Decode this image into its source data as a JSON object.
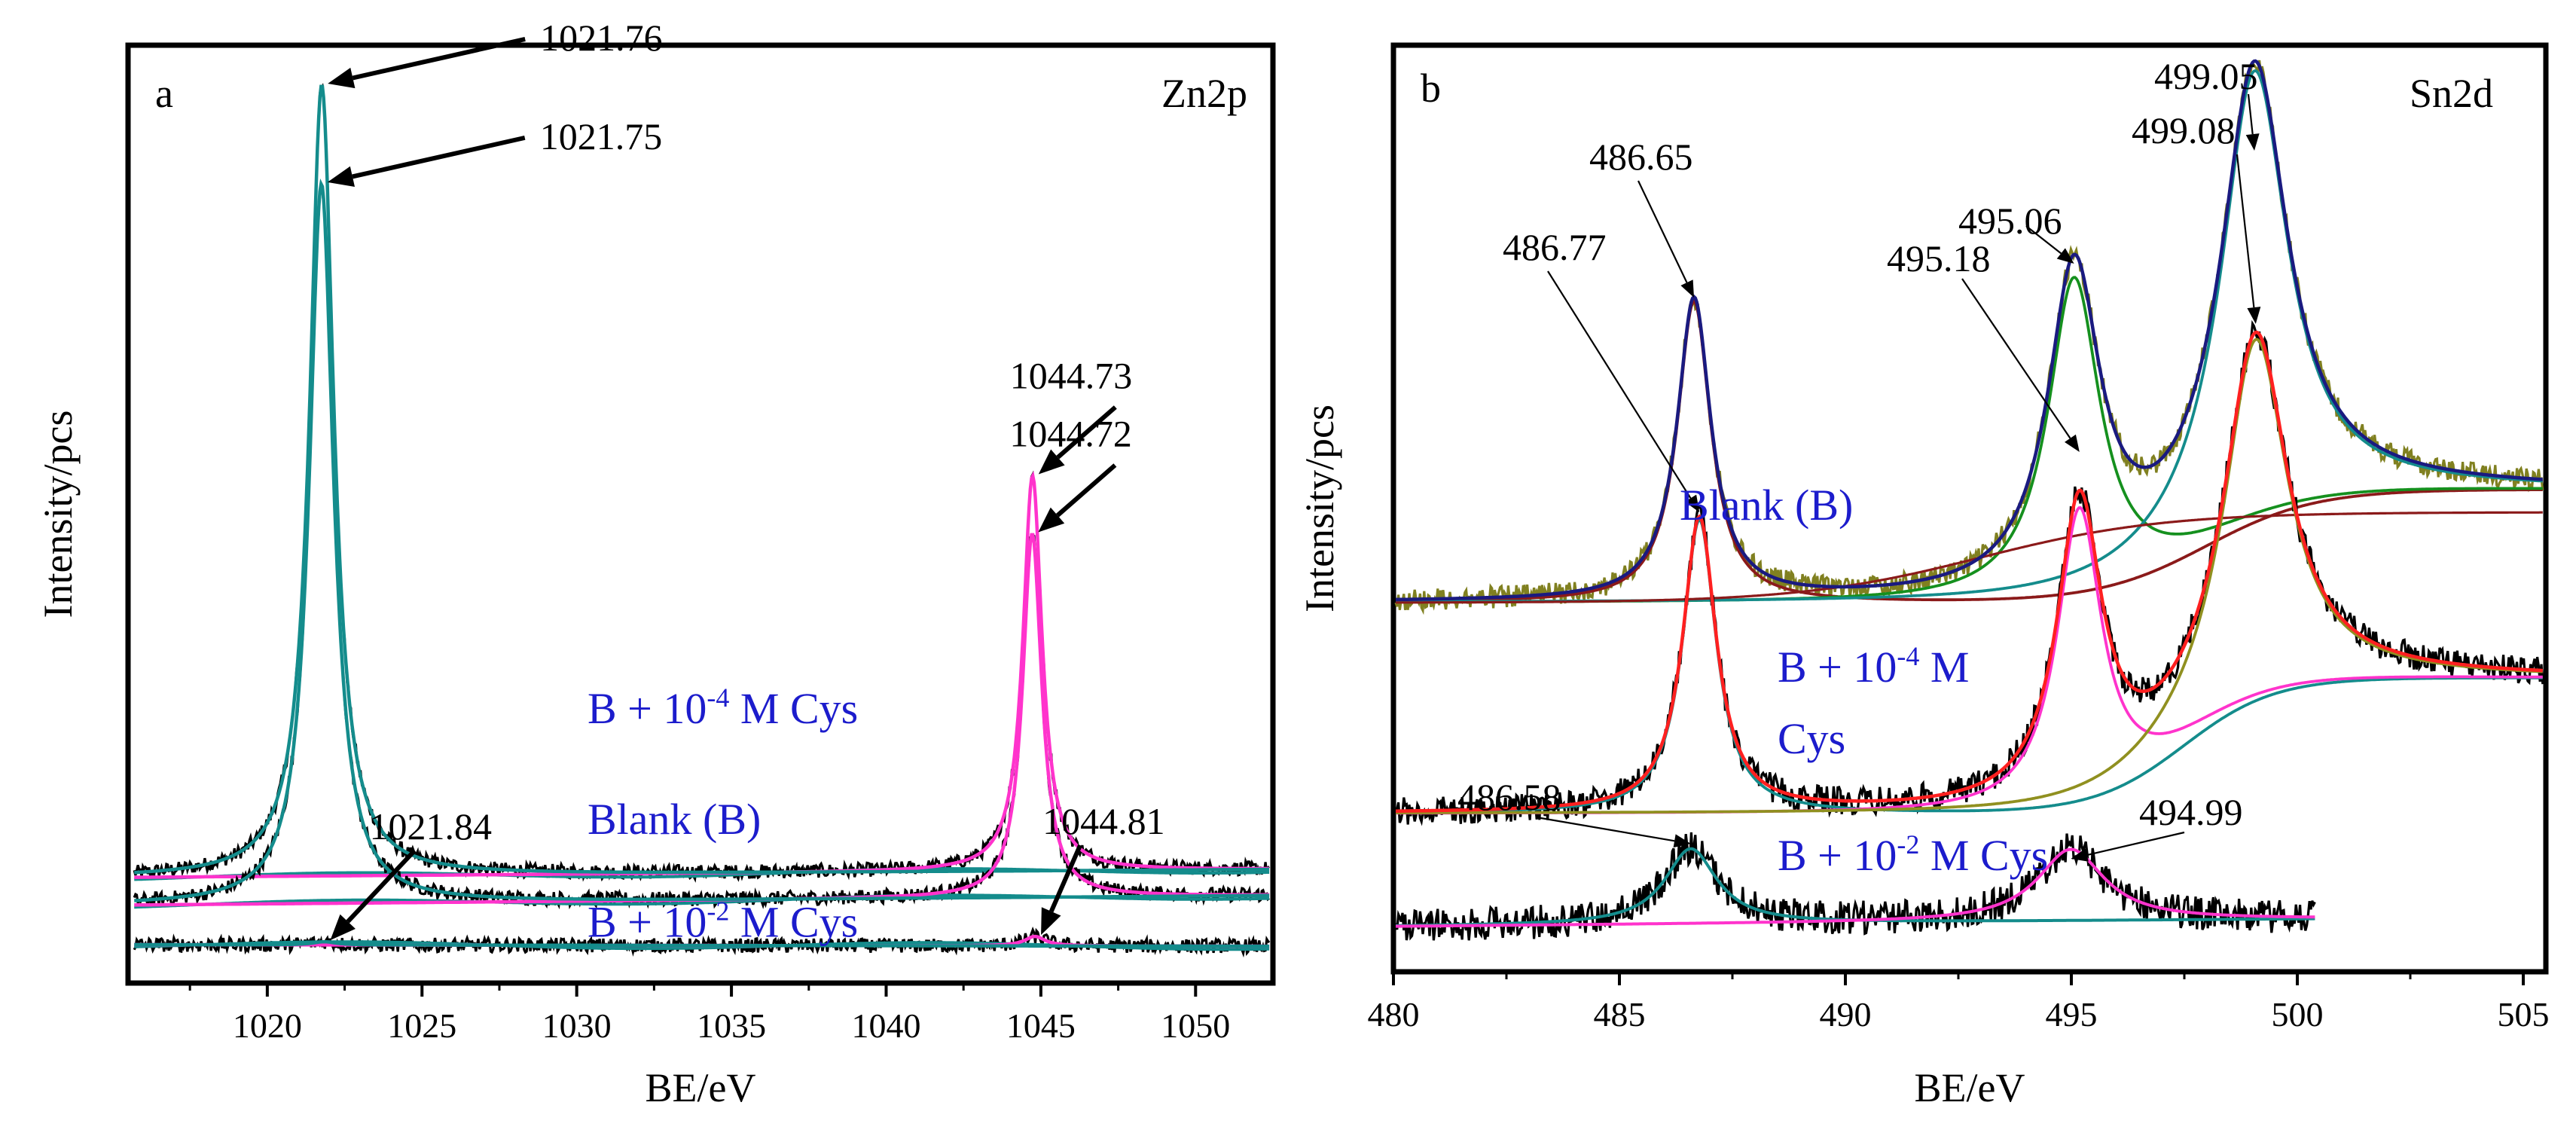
{
  "chart_data": [
    {
      "type": "line",
      "panel": "a",
      "element": "Zn2p",
      "xlabel": "BE/eV",
      "ylabel": "Intensity/pcs",
      "xlim": [
        1015.5,
        1052.5
      ],
      "xticks": [
        1020,
        1025,
        1030,
        1035,
        1040,
        1045,
        1050
      ],
      "ylim": [
        0,
        1
      ],
      "colors": {
        "raw": "#000000",
        "fit": "#ff33cc",
        "baseline": "#148c8c",
        "component": "#148c8c",
        "label": "#1c1ccc"
      },
      "series": [
        {
          "name": "B + 10-4 M Cys",
          "label_parts": [
            "B + 10",
            "-4",
            " M Cys"
          ],
          "label_at": [
            1033.2,
            0.3
          ],
          "baseline": 0.105,
          "baseline_end": 0.115,
          "peaks": [
            {
              "center": 1021.76,
              "height": 1.0,
              "width": 0.95,
              "label": "1021.76"
            },
            {
              "center": 1044.73,
              "height": 0.5,
              "width": 0.75,
              "label": "1044.73"
            }
          ]
        },
        {
          "name": "Blank (B)",
          "label_parts": [
            "Blank (B)"
          ],
          "label_at": [
            1033.2,
            0.16
          ],
          "baseline": 0.07,
          "baseline_end": 0.082,
          "peaks": [
            {
              "center": 1021.75,
              "height": 0.91,
              "width": 0.95,
              "label": "1021.75"
            },
            {
              "center": 1044.72,
              "height": 0.46,
              "width": 0.75,
              "label": "1044.72"
            }
          ]
        },
        {
          "name": "B + 10-2 M Cys",
          "label_parts": [
            "B + 10",
            "-2",
            " M Cys"
          ],
          "label_at": [
            1033.2,
            0.03
          ],
          "baseline": 0.02,
          "baseline_end": 0.018,
          "peaks": [
            {
              "center": 1021.84,
              "height": 0.004,
              "width": 0.9,
              "label": "1021.84"
            },
            {
              "center": 1044.81,
              "height": 0.012,
              "width": 0.8,
              "label": "1044.81"
            }
          ]
        }
      ]
    },
    {
      "type": "line",
      "panel": "b",
      "element": "Sn2d",
      "xlabel": "BE/eV",
      "ylabel": "Intensity/pcs",
      "xlim": [
        480,
        505.5
      ],
      "xticks": [
        480,
        485,
        490,
        495,
        500,
        505
      ],
      "ylim": [
        0,
        1
      ],
      "colors": {
        "raw_blank": "#808020",
        "envelope_blank": "#1a1a80",
        "raw": "#000000",
        "envelope": "#ff2020",
        "component_a": "#8b1a1a",
        "component_b": "#148c8c",
        "component_c": "#15901e",
        "component_d": "#ff33cc",
        "component_e": "#909020",
        "label": "#1c1ccc"
      },
      "series": [
        {
          "name": "Blank (B)",
          "label_parts": [
            "Blank (B)"
          ],
          "label_at": [
            491.3,
            0.45
          ],
          "peaks": [
            {
              "center": 486.65,
              "label": "486.65"
            },
            {
              "center": 495.06,
              "label": "495.06"
            },
            {
              "center": 499.05,
              "label": "499.05"
            }
          ]
        },
        {
          "name": "B + 10-4 M Cys",
          "label_parts": [
            "B + 10",
            "-4",
            " M"
          ],
          "label_line2": "Cys",
          "label_at": [
            490.6,
            0.29
          ],
          "peaks": [
            {
              "center": 486.77,
              "label": "486.77"
            },
            {
              "center": 495.18,
              "label": "495.18"
            },
            {
              "center": 499.08,
              "label": "499.08"
            }
          ]
        },
        {
          "name": "B + 10-2 M Cys",
          "label_parts": [
            "B + 10",
            "-2",
            " M Cys"
          ],
          "label_at": [
            490.6,
            0.08
          ],
          "peaks": [
            {
              "center": 486.58,
              "label": "486.58"
            },
            {
              "center": 494.99,
              "label": "494.99"
            }
          ]
        }
      ]
    }
  ]
}
